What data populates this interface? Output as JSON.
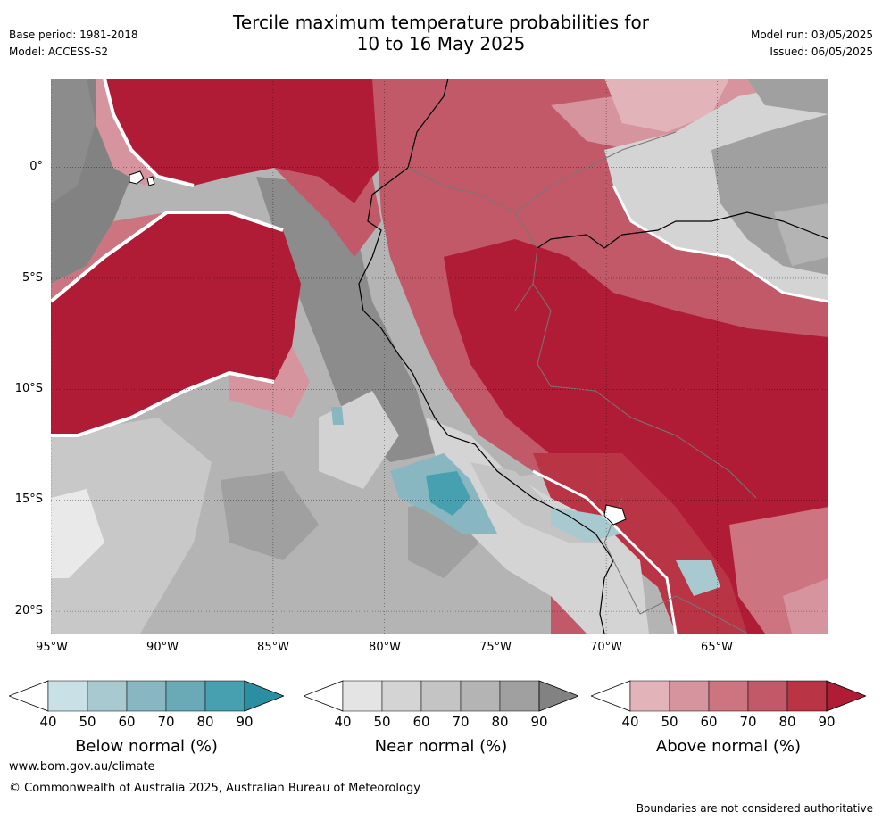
{
  "header": {
    "title_line1": "Tercile maximum temperature probabilities for",
    "title_line2": "10 to 16 May 2025",
    "base_period": "Base period: 1981-2018",
    "model": "Model: ACCESS-S2",
    "model_run": "Model run: 03/05/2025",
    "issued": "Issued: 06/05/2025"
  },
  "map": {
    "lon_ticks": [
      "95°W",
      "90°W",
      "85°W",
      "80°W",
      "75°W",
      "70°W",
      "65°W"
    ],
    "lat_ticks": [
      "0°",
      "5°S",
      "10°S",
      "15°S",
      "20°S"
    ],
    "lon_values": [
      -95,
      -90,
      -85,
      -80,
      -75,
      -70,
      -65
    ],
    "lat_values": [
      0,
      -5,
      -10,
      -15,
      -20
    ],
    "extent": {
      "lon_min": -95,
      "lon_max": -60,
      "lat_min": -21,
      "lat_max": 4
    }
  },
  "colorbars": [
    {
      "title": "Below normal (%)",
      "ticks": [
        "40",
        "50",
        "60",
        "70",
        "80",
        "90"
      ],
      "colors": [
        "#ffffff",
        "#c9e1e6",
        "#a8c9cf",
        "#88b6c1",
        "#6aaab6",
        "#46a0b0",
        "#2b8ea2"
      ]
    },
    {
      "title": "Near normal (%)",
      "ticks": [
        "40",
        "50",
        "60",
        "70",
        "80",
        "90"
      ],
      "colors": [
        "#ffffff",
        "#e4e4e4",
        "#d4d4d4",
        "#c4c4c4",
        "#b4b4b4",
        "#a0a0a0",
        "#828282"
      ]
    },
    {
      "title": "Above normal (%)",
      "ticks": [
        "40",
        "50",
        "60",
        "70",
        "80",
        "90"
      ],
      "colors": [
        "#ffffff",
        "#e2b4ba",
        "#d6949e",
        "#cc7580",
        "#c15969",
        "#b93444",
        "#b01c36"
      ]
    }
  ],
  "colors": {
    "above_90": "#b01c36",
    "above_80": "#b93444",
    "above_70": "#c15969",
    "above_60": "#cc7580",
    "above_50": "#d6949e",
    "above_40": "#e2b4ba",
    "near_50": "#d4d4d4",
    "near_60": "#c4c4c4",
    "near_70": "#b4b4b4",
    "near_80": "#a0a0a0",
    "near_90": "#828282",
    "below_60": "#88b6c1",
    "below_80": "#46a0b0"
  },
  "footer": {
    "url": "www.bom.gov.au/climate",
    "copyright": "© Commonwealth of Australia 2025, Australian Bureau of Meteorology",
    "disclaimer": "Boundaries are not considered authoritative"
  }
}
